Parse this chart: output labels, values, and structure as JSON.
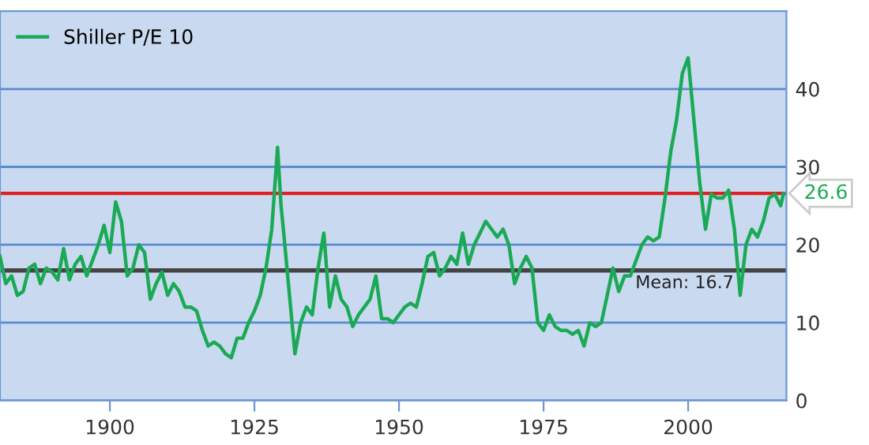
{
  "chart_data": {
    "type": "line",
    "x": [
      1881,
      1882,
      1883,
      1884,
      1885,
      1886,
      1887,
      1888,
      1889,
      1890,
      1891,
      1892,
      1893,
      1894,
      1895,
      1896,
      1897,
      1898,
      1899,
      1900,
      1901,
      1902,
      1903,
      1904,
      1905,
      1906,
      1907,
      1908,
      1909,
      1910,
      1911,
      1912,
      1913,
      1914,
      1915,
      1916,
      1917,
      1918,
      1919,
      1920,
      1921,
      1922,
      1923,
      1924,
      1925,
      1926,
      1927,
      1928,
      1929,
      1929.6,
      1930,
      1931,
      1932,
      1933,
      1934,
      1935,
      1936,
      1937,
      1938,
      1939,
      1940,
      1941,
      1942,
      1943,
      1944,
      1945,
      1946,
      1947,
      1948,
      1949,
      1950,
      1951,
      1952,
      1953,
      1954,
      1955,
      1956,
      1957,
      1958,
      1959,
      1960,
      1961,
      1962,
      1963,
      1964,
      1965,
      1966,
      1967,
      1968,
      1969,
      1970,
      1971,
      1972,
      1973,
      1974,
      1975,
      1976,
      1977,
      1978,
      1979,
      1980,
      1981,
      1982,
      1983,
      1984,
      1985,
      1986,
      1987,
      1988,
      1989,
      1990,
      1991,
      1992,
      1993,
      1994,
      1995,
      1996,
      1997,
      1998,
      1999,
      2000,
      2001,
      2002,
      2003,
      2004,
      2005,
      2006,
      2007,
      2008,
      2009,
      2010,
      2011,
      2012,
      2013,
      2014,
      2015,
      2016,
      2016.5
    ],
    "series": [
      {
        "name": "Shiller P/E 10",
        "color": "#1aaa55",
        "values": [
          18.5,
          15,
          16,
          13.5,
          14,
          17,
          17.5,
          15,
          17,
          16.5,
          15.5,
          19.5,
          15.5,
          17.5,
          18.5,
          16,
          18,
          20,
          22.5,
          19,
          25.5,
          23,
          16,
          17,
          20,
          19,
          13,
          15,
          16.5,
          13.5,
          15,
          14,
          12,
          12,
          11.5,
          9,
          7,
          7.5,
          7,
          6,
          5.5,
          8,
          8,
          10,
          11.5,
          13.5,
          17,
          22,
          32.5,
          25,
          22,
          14,
          6,
          10,
          12,
          11,
          17,
          21.5,
          12,
          16,
          13,
          12,
          9.5,
          11,
          12,
          13,
          16,
          10.5,
          10.5,
          10,
          11,
          12,
          12.5,
          12,
          15,
          18.5,
          19,
          16,
          17,
          18.5,
          17.5,
          21.5,
          17.5,
          20,
          21.5,
          23,
          22,
          21,
          22,
          20,
          15,
          17,
          18.5,
          17,
          10,
          9,
          11,
          9.5,
          9,
          9,
          8.5,
          9,
          7,
          10,
          9.5,
          10,
          13.5,
          17,
          14,
          16,
          16,
          18,
          20,
          21,
          20.5,
          21,
          26,
          32,
          36,
          42,
          44,
          36,
          28,
          22,
          26.5,
          26,
          26,
          27,
          22,
          13.5,
          20,
          22,
          21,
          23,
          26,
          26.5,
          25,
          26.6
        ]
      }
    ],
    "xlim": [
      1881,
      2017
    ],
    "ylim": [
      0,
      50
    ],
    "xticks": [
      1900,
      1925,
      1950,
      1975,
      2000
    ],
    "yticks": [
      0,
      10,
      20,
      30,
      40
    ],
    "ref_lines": [
      {
        "axis": "y",
        "value": 26.6,
        "label": "26.6",
        "color": "#e02020"
      },
      {
        "axis": "y",
        "value": 16.7,
        "label": "Mean: 16.7",
        "color": "#444444"
      }
    ],
    "grid": "y",
    "legend": "top left",
    "marker": "none",
    "line_style": "solid"
  }
}
